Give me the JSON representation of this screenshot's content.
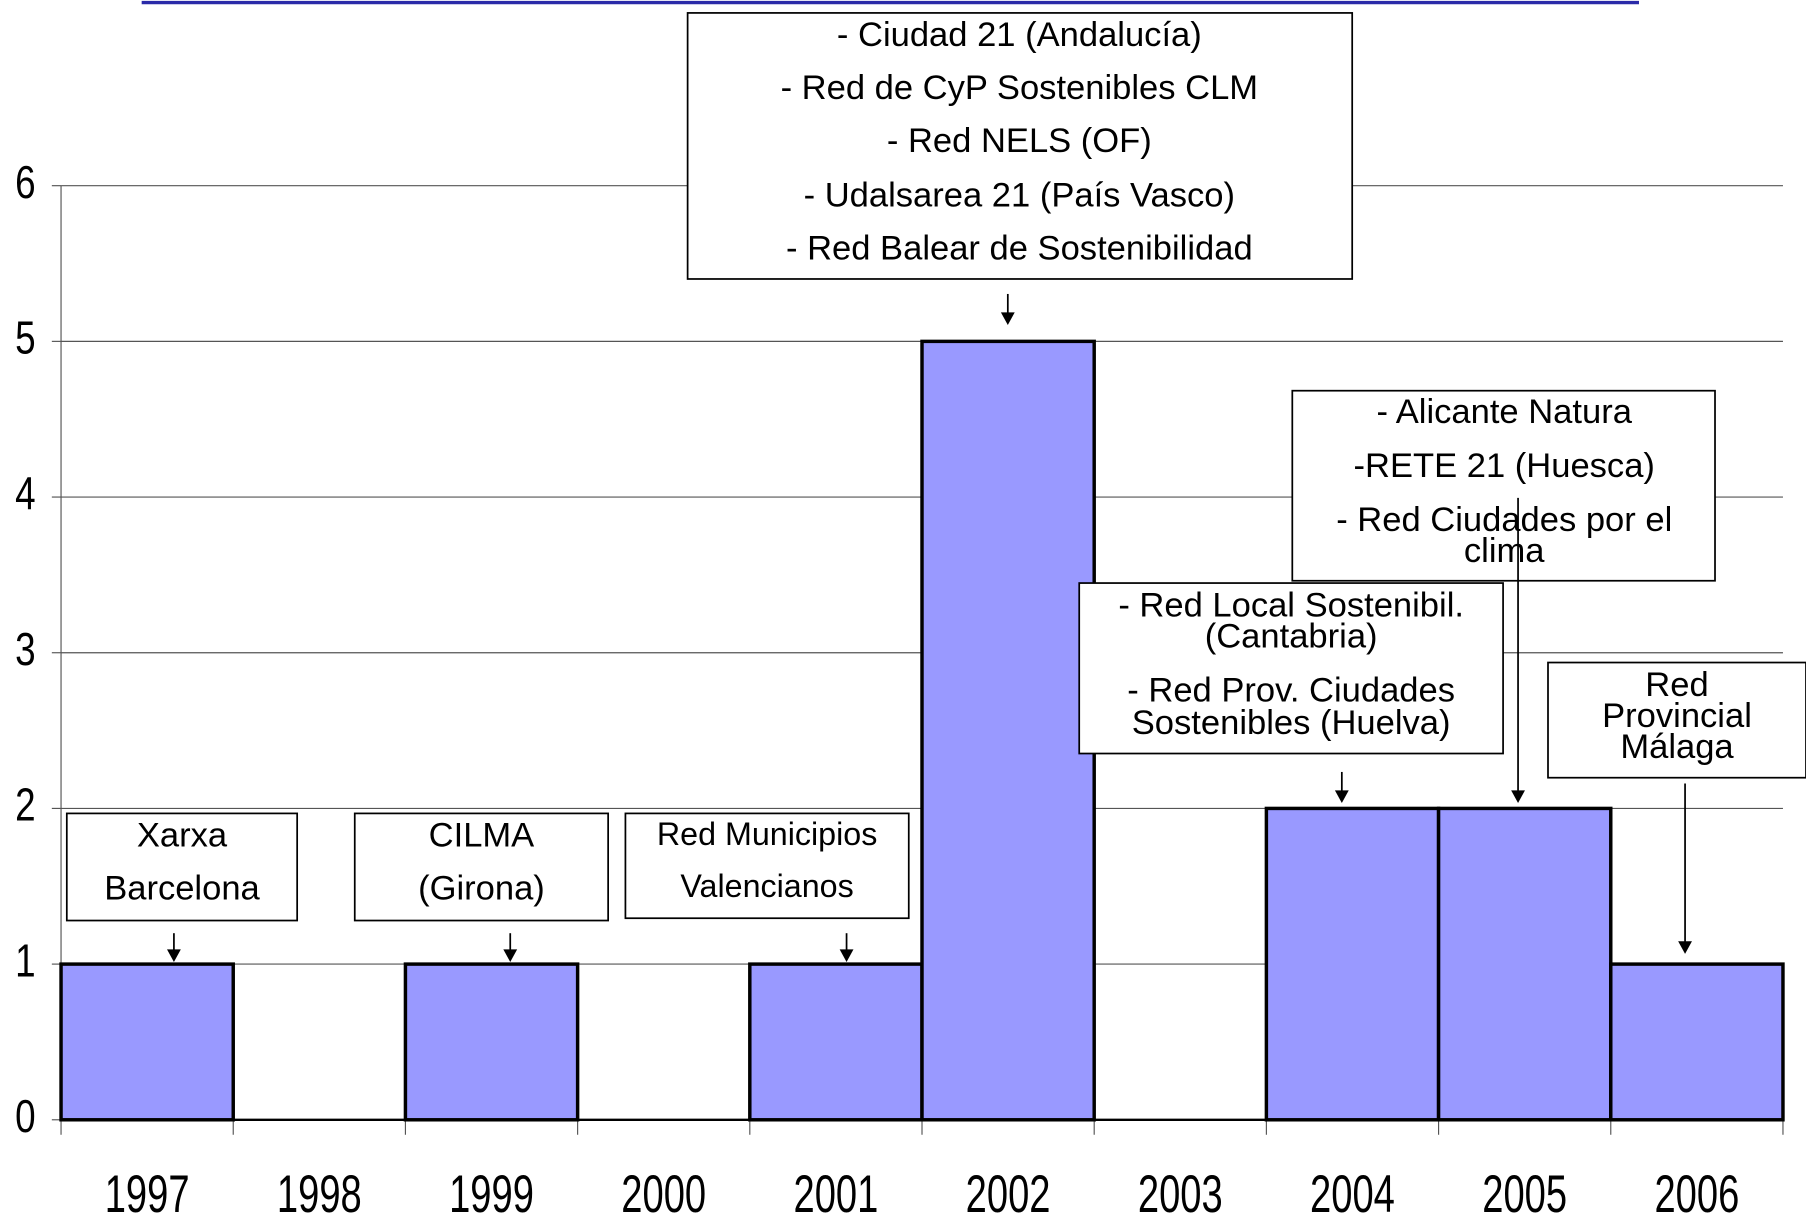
{
  "chart_data": {
    "type": "bar",
    "categories": [
      "1997",
      "1998",
      "1999",
      "2000",
      "2001",
      "2002",
      "2003",
      "2004",
      "2005",
      "2006"
    ],
    "values": [
      1,
      0,
      1,
      0,
      1,
      5,
      0,
      2,
      2,
      1
    ],
    "color": "#9999ff",
    "ylim": [
      0,
      6
    ],
    "yticks": [
      0,
      1,
      2,
      3,
      4,
      5,
      6
    ],
    "grid": true,
    "annotations": [
      {
        "lines": [
          "Xarxa",
          "Barcelona"
        ]
      },
      {
        "lines": [
          "CILMA",
          "(Girona)"
        ]
      },
      {
        "lines": [
          "Red Municipios",
          "Valencianos"
        ]
      },
      {
        "lines": [
          "- Ciudad 21 (Andalucía)",
          "- Red de CyP Sostenibles CLM",
          "- Red NELS (OF)",
          "- Udalsarea 21 (País Vasco)",
          "- Red Balear de Sostenibilidad"
        ]
      },
      {
        "lines": [
          "- Alicante Natura",
          "-RETE 21 (Huesca)",
          "- Red Ciudades por el",
          "clima"
        ]
      },
      {
        "lines": [
          "- Red Local Sostenibil.",
          "(Cantabria)",
          "- Red Prov. Ciudades",
          "Sostenibles (Huelva)"
        ]
      },
      {
        "lines": [
          "Red",
          "Provincial",
          "Málaga"
        ]
      }
    ]
  }
}
